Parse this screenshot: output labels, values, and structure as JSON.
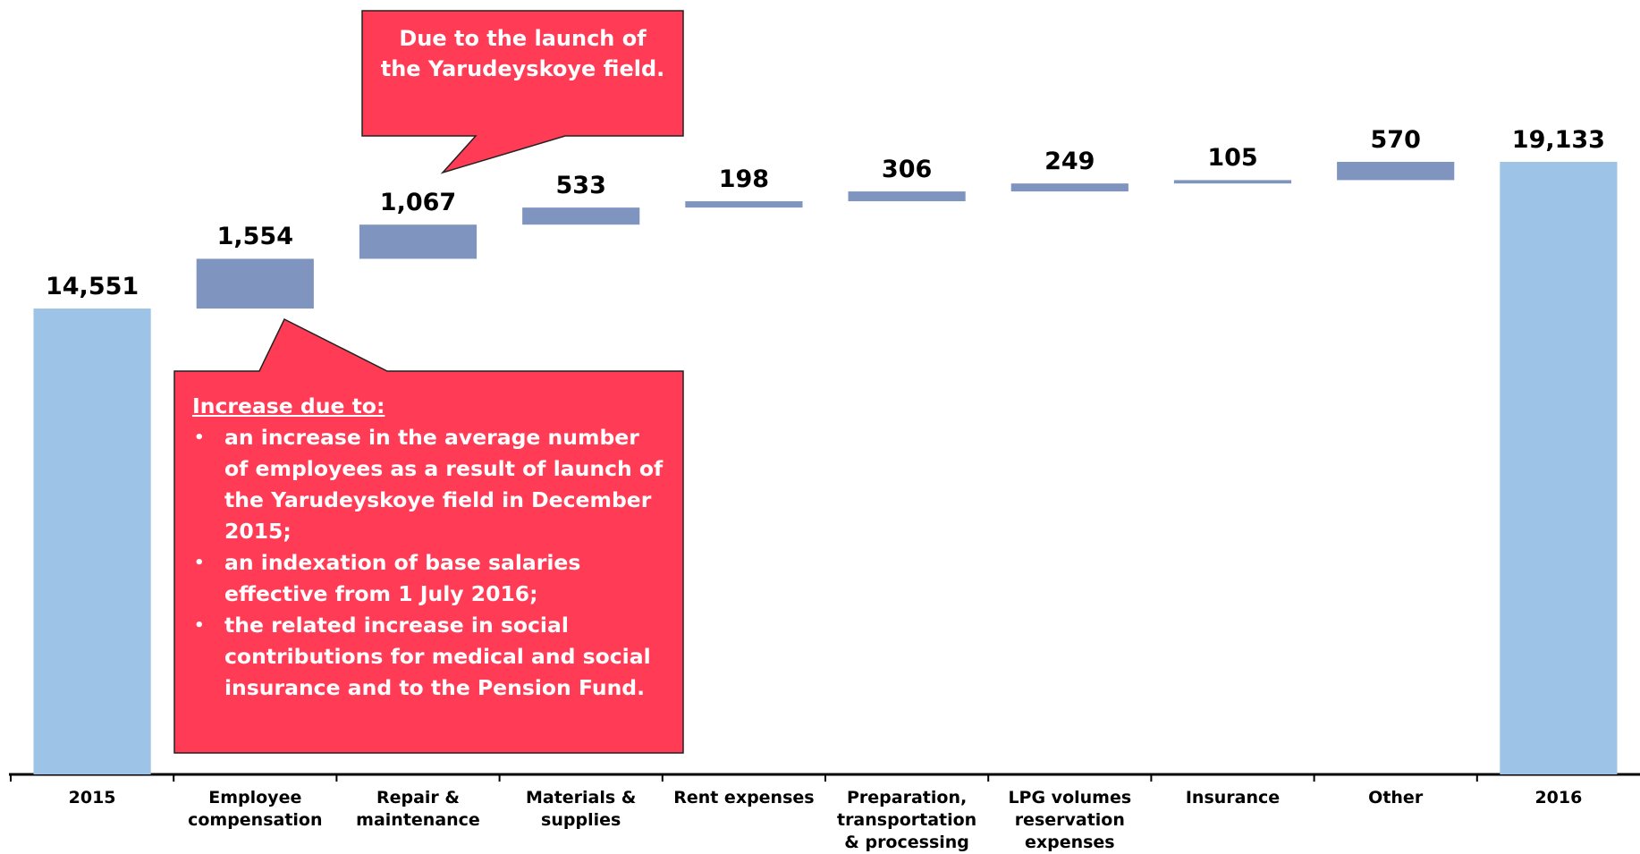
{
  "chart_data": {
    "type": "waterfall",
    "categories": [
      "2015",
      "Employee compensation",
      "Repair & maintenance",
      "Materials & supplies",
      "Rent expenses",
      "Preparation, transportation & processing",
      "LPG volumes reservation expenses",
      "Insurance",
      "Other",
      "2016"
    ],
    "values": [
      14551,
      1554,
      1067,
      533,
      198,
      306,
      249,
      105,
      570,
      19133
    ],
    "value_labels": [
      "14,551",
      "1,554",
      "1,067",
      "533",
      "198",
      "306",
      "249",
      "105",
      "570",
      "19,133"
    ],
    "colors": {
      "total": "#9dc3e6",
      "change": "#7f95c0"
    },
    "annotations": [
      {
        "text": "Due to the launch of the Yarudeyskoye field."
      },
      {
        "heading": "Increase due to:",
        "bullets": [
          "an increase in the average number of employees as a result of launch of the Yarudeyskoye field in December 2015;",
          "an indexation of base salaries effective from 1 July 2016;",
          "the related increase in social contributions for medical and social insurance and to the Pension Fund."
        ]
      }
    ]
  }
}
